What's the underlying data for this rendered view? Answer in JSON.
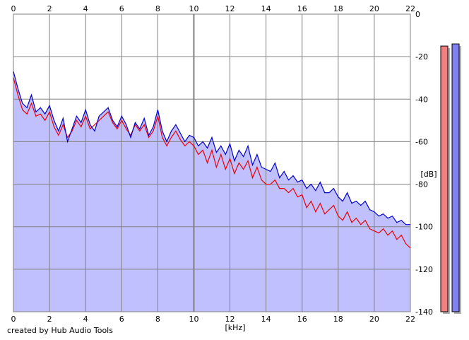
{
  "credit": "created by Hub Audio Tools",
  "chart_data": {
    "type": "line",
    "title": "",
    "xlabel": "[kHz]",
    "ylabel": "[dB]",
    "xlim": [
      0,
      22
    ],
    "ylim": [
      -140,
      0
    ],
    "x_ticks": [
      "0",
      "2",
      "4",
      "6",
      "8",
      "10",
      "12",
      "14",
      "16",
      "18",
      "20",
      "22"
    ],
    "y_ticks": [
      "0",
      "-20",
      "-40",
      "-60",
      "-80",
      "-100",
      "-120",
      "-140"
    ],
    "grid": true,
    "legend": "none",
    "colors": {
      "blue": "#0000cc",
      "red": "#ee0000",
      "fill": "#c0c0ff",
      "grid": "#808080",
      "meter_red": "#f08080",
      "meter_blue": "#8080f0"
    },
    "series": [
      {
        "color": "#0000cc",
        "x": [
          0,
          0.25,
          0.5,
          0.75,
          1,
          1.25,
          1.5,
          1.75,
          2,
          2.25,
          2.5,
          2.75,
          3,
          3.25,
          3.5,
          3.75,
          4,
          4.25,
          4.5,
          4.75,
          5,
          5.25,
          5.5,
          5.75,
          6,
          6.25,
          6.5,
          6.75,
          7,
          7.25,
          7.5,
          7.75,
          8,
          8.25,
          8.5,
          8.75,
          9,
          9.25,
          9.5,
          9.75,
          10,
          10.25,
          10.5,
          10.75,
          11,
          11.25,
          11.5,
          11.75,
          12,
          12.25,
          12.5,
          12.75,
          13,
          13.25,
          13.5,
          13.75,
          14,
          14.25,
          14.5,
          14.75,
          15,
          15.25,
          15.5,
          15.75,
          16,
          16.25,
          16.5,
          16.75,
          17,
          17.25,
          17.5,
          17.75,
          18,
          18.25,
          18.5,
          18.75,
          19,
          19.25,
          19.5,
          19.75,
          20,
          20.25,
          20.5,
          20.75,
          21,
          21.25,
          21.5,
          21.75,
          22
        ],
        "values": [
          -27,
          -35,
          -42,
          -44,
          -38,
          -46,
          -44,
          -47,
          -43,
          -50,
          -55,
          -49,
          -60,
          -54,
          -48,
          -51,
          -45,
          -52,
          -55,
          -48,
          -46,
          -44,
          -50,
          -53,
          -48,
          -52,
          -58,
          -51,
          -54,
          -49,
          -57,
          -53,
          -45,
          -55,
          -60,
          -55,
          -52,
          -56,
          -60,
          -57,
          -58,
          -62,
          -60,
          -63,
          -58,
          -65,
          -62,
          -66,
          -61,
          -69,
          -64,
          -67,
          -62,
          -71,
          -66,
          -72,
          -73,
          -74,
          -70,
          -77,
          -74,
          -78,
          -76,
          -79,
          -78,
          -82,
          -80,
          -83,
          -79,
          -84,
          -84,
          -82,
          -86,
          -88,
          -84,
          -89,
          -88,
          -90,
          -88,
          -92,
          -93,
          -95,
          -94,
          -96,
          -95,
          -98,
          -97,
          -99,
          -99
        ]
      },
      {
        "color": "#ee0000",
        "x": [
          0,
          0.25,
          0.5,
          0.75,
          1,
          1.25,
          1.5,
          1.75,
          2,
          2.25,
          2.5,
          2.75,
          3,
          3.25,
          3.5,
          3.75,
          4,
          4.25,
          4.5,
          4.75,
          5,
          5.25,
          5.5,
          5.75,
          6,
          6.25,
          6.5,
          6.75,
          7,
          7.25,
          7.5,
          7.75,
          8,
          8.25,
          8.5,
          8.75,
          9,
          9.25,
          9.5,
          9.75,
          10,
          10.25,
          10.5,
          10.75,
          11,
          11.25,
          11.5,
          11.75,
          12,
          12.25,
          12.5,
          12.75,
          13,
          13.25,
          13.5,
          13.75,
          14,
          14.25,
          14.5,
          14.75,
          15,
          15.25,
          15.5,
          15.75,
          16,
          16.25,
          16.5,
          16.75,
          17,
          17.25,
          17.5,
          17.75,
          18,
          18.25,
          18.5,
          18.75,
          19,
          19.25,
          19.5,
          19.75,
          20,
          20.25,
          20.5,
          20.75,
          21,
          21.25,
          21.5,
          21.75,
          22
        ],
        "values": [
          -30,
          -38,
          -45,
          -47,
          -42,
          -48,
          -47,
          -50,
          -46,
          -53,
          -57,
          -52,
          -58,
          -55,
          -50,
          -53,
          -48,
          -54,
          -52,
          -50,
          -48,
          -46,
          -51,
          -54,
          -50,
          -54,
          -57,
          -52,
          -55,
          -52,
          -58,
          -55,
          -48,
          -58,
          -62,
          -58,
          -55,
          -59,
          -62,
          -60,
          -62,
          -66,
          -64,
          -70,
          -64,
          -72,
          -66,
          -73,
          -68,
          -75,
          -70,
          -73,
          -69,
          -77,
          -72,
          -78,
          -80,
          -80,
          -78,
          -82,
          -82,
          -84,
          -82,
          -86,
          -85,
          -91,
          -88,
          -93,
          -89,
          -94,
          -92,
          -90,
          -95,
          -97,
          -93,
          -98,
          -96,
          -99,
          -97,
          -101,
          -102,
          -103,
          -101,
          -104,
          -102,
          -106,
          -104,
          -108,
          -110
        ]
      }
    ],
    "meters": {
      "unit": "dB",
      "levels": [
        -15,
        -14
      ]
    }
  }
}
